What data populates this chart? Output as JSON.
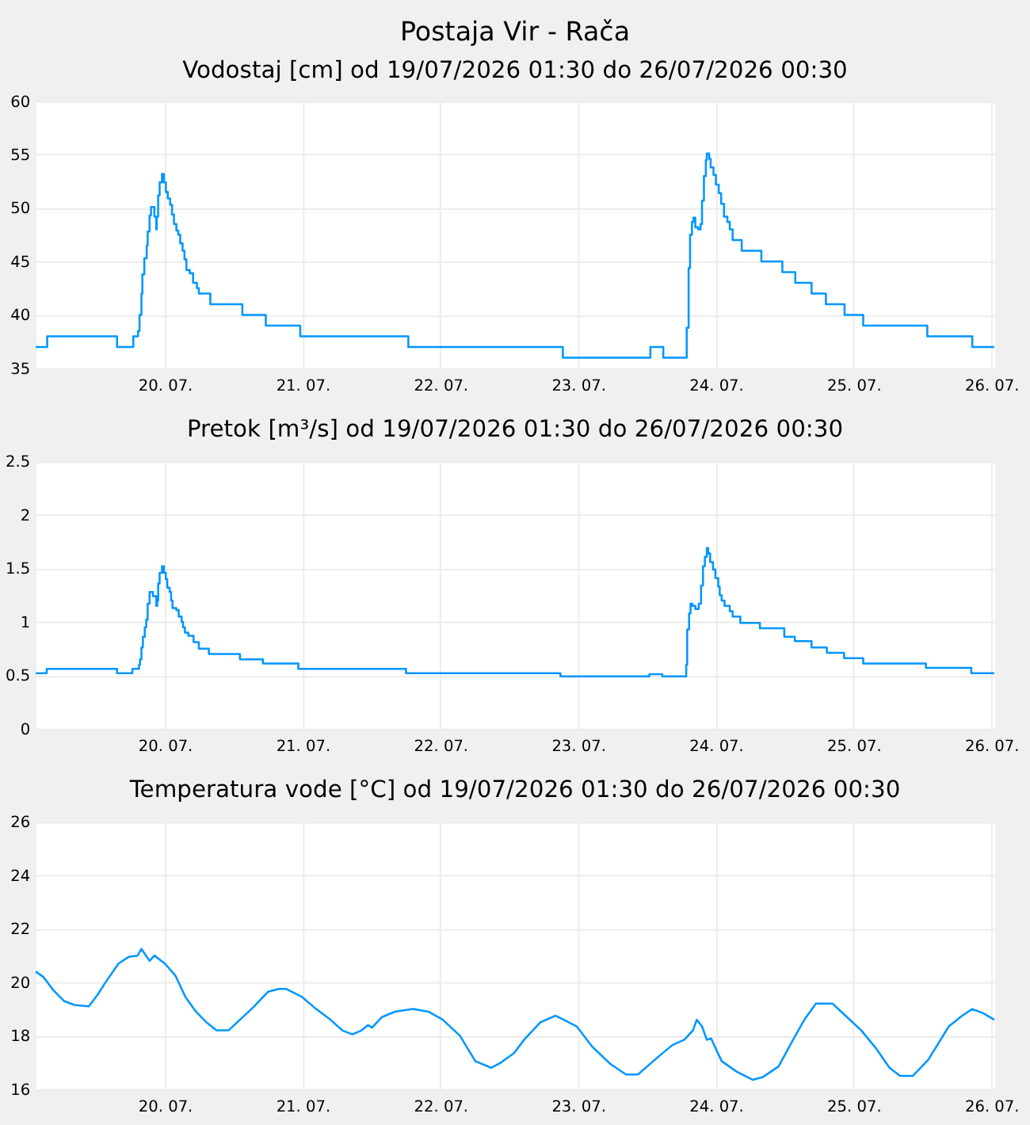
{
  "chart_data": [
    {
      "type": "step",
      "title": "Postaja Vir - Rača",
      "subtitle": "Vodostaj [cm] od 19/07/2026 01:30 do 26/07/2026 00:30",
      "grid": true,
      "xlim": [
        "2026-07-19T01:30",
        "2026-07-26T00:30"
      ],
      "xticks": [
        {
          "value": "2026-07-20",
          "label": "20. 07."
        },
        {
          "value": "2026-07-21",
          "label": "21. 07."
        },
        {
          "value": "2026-07-22",
          "label": "22. 07."
        },
        {
          "value": "2026-07-23",
          "label": "23. 07."
        },
        {
          "value": "2026-07-24",
          "label": "24. 07."
        },
        {
          "value": "2026-07-25",
          "label": "25. 07."
        },
        {
          "value": "2026-07-26",
          "label": "26. 07."
        }
      ],
      "ylim": [
        35,
        60
      ],
      "yticks": [
        35,
        40,
        45,
        50,
        55,
        60
      ],
      "series": [
        {
          "color": "#0096ff",
          "x": [
            "2026-07-19T01:30",
            "2026-07-19T03:30",
            "2026-07-19T15:40",
            "2026-07-19T18:30",
            "2026-07-19T19:20",
            "2026-07-19T19:35",
            "2026-07-19T19:55",
            "2026-07-19T20:05",
            "2026-07-19T20:25",
            "2026-07-19T20:50",
            "2026-07-19T21:00",
            "2026-07-19T21:20",
            "2026-07-19T21:35",
            "2026-07-19T22:10",
            "2026-07-19T22:30",
            "2026-07-19T22:35",
            "2026-07-19T22:50",
            "2026-07-19T23:05",
            "2026-07-19T23:30",
            "2026-07-19T23:50",
            "2026-07-20T00:10",
            "2026-07-20T00:30",
            "2026-07-20T00:55",
            "2026-07-20T01:15",
            "2026-07-20T01:35",
            "2026-07-20T02:00",
            "2026-07-20T02:20",
            "2026-07-20T02:40",
            "2026-07-20T03:05",
            "2026-07-20T03:25",
            "2026-07-20T03:45",
            "2026-07-20T04:20",
            "2026-07-20T04:55",
            "2026-07-20T05:35",
            "2026-07-20T05:55",
            "2026-07-20T07:55",
            "2026-07-20T13:30",
            "2026-07-20T17:35",
            "2026-07-20T23:35",
            "2026-07-21T18:25",
            "2026-07-22T21:20",
            "2026-07-23T12:35",
            "2026-07-23T14:50",
            "2026-07-23T18:55",
            "2026-07-23T19:15",
            "2026-07-23T19:30",
            "2026-07-23T19:50",
            "2026-07-23T20:05",
            "2026-07-23T20:25",
            "2026-07-23T20:55",
            "2026-07-23T21:20",
            "2026-07-23T21:35",
            "2026-07-23T21:55",
            "2026-07-23T22:15",
            "2026-07-23T22:25",
            "2026-07-23T22:50",
            "2026-07-23T23:05",
            "2026-07-23T23:35",
            "2026-07-24T00:00",
            "2026-07-24T00:30",
            "2026-07-24T00:55",
            "2026-07-24T01:25",
            "2026-07-24T02:00",
            "2026-07-24T02:25",
            "2026-07-24T02:55",
            "2026-07-24T04:30",
            "2026-07-24T07:55",
            "2026-07-24T11:35",
            "2026-07-24T13:50",
            "2026-07-24T16:40",
            "2026-07-24T19:10",
            "2026-07-24T22:25",
            "2026-07-25T01:40",
            "2026-07-25T12:50",
            "2026-07-25T20:40",
            "2026-07-26T00:30"
          ],
          "values": [
            37,
            38,
            37,
            38,
            38.5,
            40,
            42,
            43.8,
            45.3,
            46.5,
            47.8,
            49.3,
            50.1,
            49.2,
            48,
            49.2,
            51.2,
            52.4,
            53.2,
            52.4,
            51.5,
            50.9,
            50.3,
            49.4,
            48.5,
            47.9,
            47.5,
            46.7,
            46,
            45.2,
            44.2,
            43.9,
            43,
            42.5,
            42,
            41,
            40,
            39,
            38,
            37,
            36,
            37,
            36,
            38.8,
            44.4,
            47.5,
            48.7,
            49.1,
            48.2,
            48,
            48.5,
            50.7,
            53,
            54.5,
            55.1,
            54.6,
            53.8,
            53.1,
            52.2,
            51.4,
            50.4,
            49.2,
            48.7,
            48,
            47,
            46,
            45,
            44,
            43,
            42,
            41,
            40,
            39,
            38,
            37,
            37
          ]
        }
      ]
    },
    {
      "type": "step",
      "title": "Pretok [m³/s] od 19/07/2026 01:30 do 26/07/2026 00:30",
      "grid": true,
      "xlim": [
        "2026-07-19T01:30",
        "2026-07-26T00:30"
      ],
      "xticks": [
        {
          "value": "2026-07-20",
          "label": "20. 07."
        },
        {
          "value": "2026-07-21",
          "label": "21. 07."
        },
        {
          "value": "2026-07-22",
          "label": "22. 07."
        },
        {
          "value": "2026-07-23",
          "label": "23. 07."
        },
        {
          "value": "2026-07-24",
          "label": "24. 07."
        },
        {
          "value": "2026-07-25",
          "label": "25. 07."
        },
        {
          "value": "2026-07-26",
          "label": "26. 07."
        }
      ],
      "ylim": [
        0,
        2.5
      ],
      "yticks": [
        0,
        0.5,
        1,
        1.5,
        2,
        2.5
      ],
      "series": [
        {
          "color": "#0096ff",
          "x": [
            "2026-07-19T01:30",
            "2026-07-19T03:25",
            "2026-07-19T15:40",
            "2026-07-19T18:20",
            "2026-07-19T19:30",
            "2026-07-19T19:40",
            "2026-07-19T19:55",
            "2026-07-19T20:10",
            "2026-07-19T20:30",
            "2026-07-19T20:45",
            "2026-07-19T21:00",
            "2026-07-19T21:20",
            "2026-07-19T21:55",
            "2026-07-19T22:30",
            "2026-07-19T22:40",
            "2026-07-19T22:50",
            "2026-07-19T23:05",
            "2026-07-19T23:30",
            "2026-07-19T23:50",
            "2026-07-20T00:10",
            "2026-07-20T00:25",
            "2026-07-20T00:50",
            "2026-07-20T01:05",
            "2026-07-20T01:20",
            "2026-07-20T02:00",
            "2026-07-20T02:25",
            "2026-07-20T02:55",
            "2026-07-20T03:10",
            "2026-07-20T03:30",
            "2026-07-20T04:05",
            "2026-07-20T05:00",
            "2026-07-20T05:55",
            "2026-07-20T07:40",
            "2026-07-20T13:05",
            "2026-07-20T17:05",
            "2026-07-20T23:15",
            "2026-07-21T18:00",
            "2026-07-22T20:55",
            "2026-07-23T12:25",
            "2026-07-23T14:40",
            "2026-07-23T18:50",
            "2026-07-23T19:00",
            "2026-07-23T19:20",
            "2026-07-23T19:35",
            "2026-07-23T19:55",
            "2026-07-23T20:25",
            "2026-07-23T21:00",
            "2026-07-23T21:25",
            "2026-07-23T21:45",
            "2026-07-23T22:05",
            "2026-07-23T22:25",
            "2026-07-23T22:40",
            "2026-07-23T23:00",
            "2026-07-23T23:30",
            "2026-07-23T23:55",
            "2026-07-24T00:25",
            "2026-07-24T00:40",
            "2026-07-24T01:00",
            "2026-07-24T01:30",
            "2026-07-24T02:25",
            "2026-07-24T02:55",
            "2026-07-24T04:15",
            "2026-07-24T07:40",
            "2026-07-24T11:55",
            "2026-07-24T13:45",
            "2026-07-24T16:40",
            "2026-07-24T19:20",
            "2026-07-24T22:20",
            "2026-07-25T01:40",
            "2026-07-25T12:35",
            "2026-07-25T20:30",
            "2026-07-26T00:30"
          ],
          "values": [
            0.52,
            0.56,
            0.52,
            0.56,
            0.6,
            0.65,
            0.76,
            0.86,
            0.95,
            1.02,
            1.17,
            1.28,
            1.24,
            1.15,
            1.2,
            1.36,
            1.46,
            1.52,
            1.46,
            1.4,
            1.32,
            1.28,
            1.2,
            1.13,
            1.11,
            1.05,
            1.0,
            0.95,
            0.9,
            0.87,
            0.81,
            0.75,
            0.7,
            0.65,
            0.61,
            0.56,
            0.52,
            0.49,
            0.51,
            0.49,
            0.6,
            0.93,
            1.08,
            1.17,
            1.15,
            1.12,
            1.17,
            1.34,
            1.52,
            1.61,
            1.69,
            1.64,
            1.56,
            1.49,
            1.41,
            1.33,
            1.25,
            1.2,
            1.15,
            1.1,
            1.05,
            0.99,
            0.94,
            0.86,
            0.82,
            0.76,
            0.71,
            0.66,
            0.61,
            0.57,
            0.52,
            0.52
          ]
        }
      ]
    },
    {
      "type": "line",
      "title": "Temperatura vode [°C] od 19/07/2026 01:30 do 26/07/2026 00:30",
      "grid": true,
      "xlim": [
        "2026-07-19T01:30",
        "2026-07-26T00:30"
      ],
      "xticks": [
        {
          "value": "2026-07-20",
          "label": "20. 07."
        },
        {
          "value": "2026-07-21",
          "label": "21. 07."
        },
        {
          "value": "2026-07-22",
          "label": "22. 07."
        },
        {
          "value": "2026-07-23",
          "label": "23. 07."
        },
        {
          "value": "2026-07-24",
          "label": "24. 07."
        },
        {
          "value": "2026-07-25",
          "label": "25. 07."
        },
        {
          "value": "2026-07-26",
          "label": "26. 07."
        }
      ],
      "ylim": [
        16,
        26
      ],
      "yticks": [
        16,
        18,
        20,
        22,
        24,
        26
      ],
      "series": [
        {
          "color": "#0096ff",
          "x": [
            "2026-07-19T01:30",
            "2026-07-19T02:50",
            "2026-07-19T04:35",
            "2026-07-19T06:25",
            "2026-07-19T08:15",
            "2026-07-19T10:45",
            "2026-07-19T12:20",
            "2026-07-19T13:40",
            "2026-07-19T15:55",
            "2026-07-19T17:40",
            "2026-07-19T19:15",
            "2026-07-19T19:55",
            "2026-07-19T21:20",
            "2026-07-19T22:10",
            "2026-07-20T00:00",
            "2026-07-20T01:50",
            "2026-07-20T03:35",
            "2026-07-20T05:25",
            "2026-07-20T07:15",
            "2026-07-20T09:00",
            "2026-07-20T11:05",
            "2026-07-20T13:05",
            "2026-07-20T15:20",
            "2026-07-20T18:00",
            "2026-07-20T19:50",
            "2026-07-20T21:10",
            "2026-07-20T23:55",
            "2026-07-21T02:05",
            "2026-07-21T04:50",
            "2026-07-21T06:55",
            "2026-07-21T08:40",
            "2026-07-21T10:15",
            "2026-07-21T11:25",
            "2026-07-21T12:05",
            "2026-07-21T13:50",
            "2026-07-21T16:05",
            "2026-07-21T19:15",
            "2026-07-21T21:55",
            "2026-07-22T00:25",
            "2026-07-22T03:25",
            "2026-07-22T06:05",
            "2026-07-22T08:50",
            "2026-07-22T10:35",
            "2026-07-22T12:50",
            "2026-07-22T14:35",
            "2026-07-22T17:25",
            "2026-07-22T20:05",
            "2026-07-22T21:30",
            "2026-07-22T23:45",
            "2026-07-23T02:25",
            "2026-07-23T05:35",
            "2026-07-23T08:20",
            "2026-07-23T10:25",
            "2026-07-23T14:10",
            "2026-07-23T16:25",
            "2026-07-23T18:30",
            "2026-07-23T20:00",
            "2026-07-23T20:40",
            "2026-07-23T21:35",
            "2026-07-23T22:25",
            "2026-07-23T23:10",
            "2026-07-24T01:00",
            "2026-07-24T03:40",
            "2026-07-24T06:25",
            "2026-07-24T08:10",
            "2026-07-24T10:55",
            "2026-07-24T13:35",
            "2026-07-24T15:25",
            "2026-07-24T17:25",
            "2026-07-24T20:20",
            "2026-07-24T22:35",
            "2026-07-25T01:20",
            "2026-07-25T04:00",
            "2026-07-25T06:15",
            "2026-07-25T08:05",
            "2026-07-25T10:20",
            "2026-07-25T13:00",
            "2026-07-25T16:35",
            "2026-07-25T18:55",
            "2026-07-25T20:40",
            "2026-07-25T22:30",
            "2026-07-26T00:30"
          ],
          "values": [
            20.4,
            20.2,
            19.7,
            19.3,
            19.15,
            19.1,
            19.55,
            20.0,
            20.7,
            20.95,
            21.0,
            21.25,
            20.8,
            21.0,
            20.7,
            20.25,
            19.45,
            18.9,
            18.5,
            18.2,
            18.2,
            18.6,
            19.05,
            19.65,
            19.75,
            19.75,
            19.45,
            19.05,
            18.6,
            18.2,
            18.05,
            18.2,
            18.4,
            18.3,
            18.7,
            18.9,
            19.0,
            18.9,
            18.6,
            18.0,
            17.05,
            16.8,
            17.0,
            17.35,
            17.85,
            18.5,
            18.75,
            18.6,
            18.35,
            17.6,
            16.95,
            16.55,
            16.55,
            17.25,
            17.65,
            17.85,
            18.2,
            18.6,
            18.35,
            17.85,
            17.9,
            17.05,
            16.65,
            16.35,
            16.45,
            16.85,
            17.9,
            18.6,
            19.2,
            19.2,
            18.75,
            18.2,
            17.5,
            16.8,
            16.5,
            16.5,
            17.1,
            18.35,
            18.75,
            19.0,
            18.85,
            18.6
          ]
        }
      ]
    }
  ]
}
